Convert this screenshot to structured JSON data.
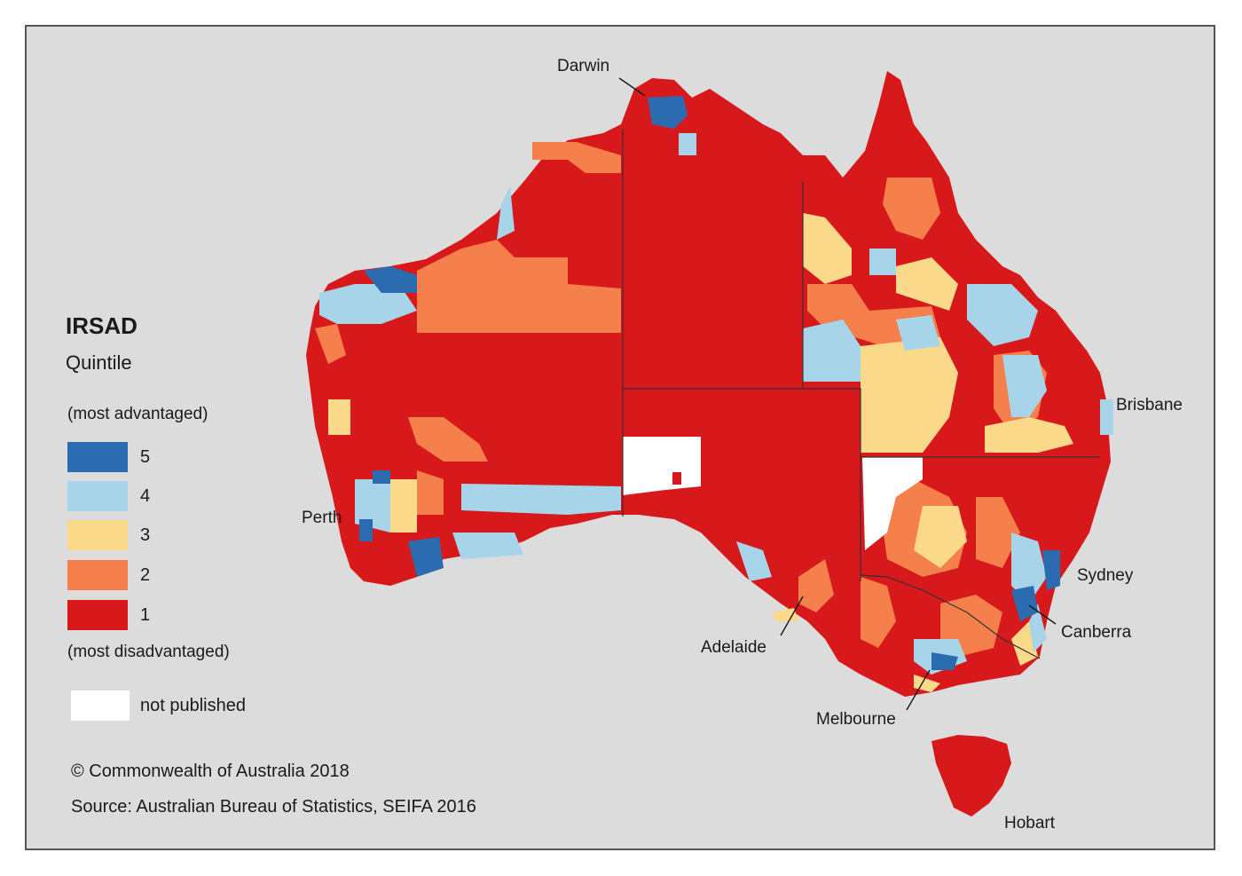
{
  "legend": {
    "title": "IRSAD",
    "subtitle": "Quintile",
    "top_note": "(most advantaged)",
    "bottom_note": "(most disadvantaged)",
    "items": [
      {
        "label": "5",
        "color": "#2b6cb0"
      },
      {
        "label": "4",
        "color": "#a8d4ea"
      },
      {
        "label": "3",
        "color": "#fbd98a"
      },
      {
        "label": "2",
        "color": "#f5804b"
      },
      {
        "label": "1",
        "color": "#d7191c"
      }
    ],
    "not_published_label": "not published",
    "not_published_color": "#ffffff"
  },
  "cities": {
    "darwin": "Darwin",
    "brisbane": "Brisbane",
    "sydney": "Sydney",
    "canberra": "Canberra",
    "melbourne": "Melbourne",
    "hobart": "Hobart",
    "adelaide": "Adelaide",
    "perth": "Perth"
  },
  "footer": {
    "copyright": "© Commonwealth of Australia 2018",
    "source": "Source: Australian Bureau of Statistics, SEIFA 2016"
  },
  "colors": {
    "background": "#dcdcdc",
    "q5": "#2b6cb0",
    "q4": "#a8d4ea",
    "q3": "#fbd98a",
    "q2": "#f5804b",
    "q1": "#d7191c"
  }
}
